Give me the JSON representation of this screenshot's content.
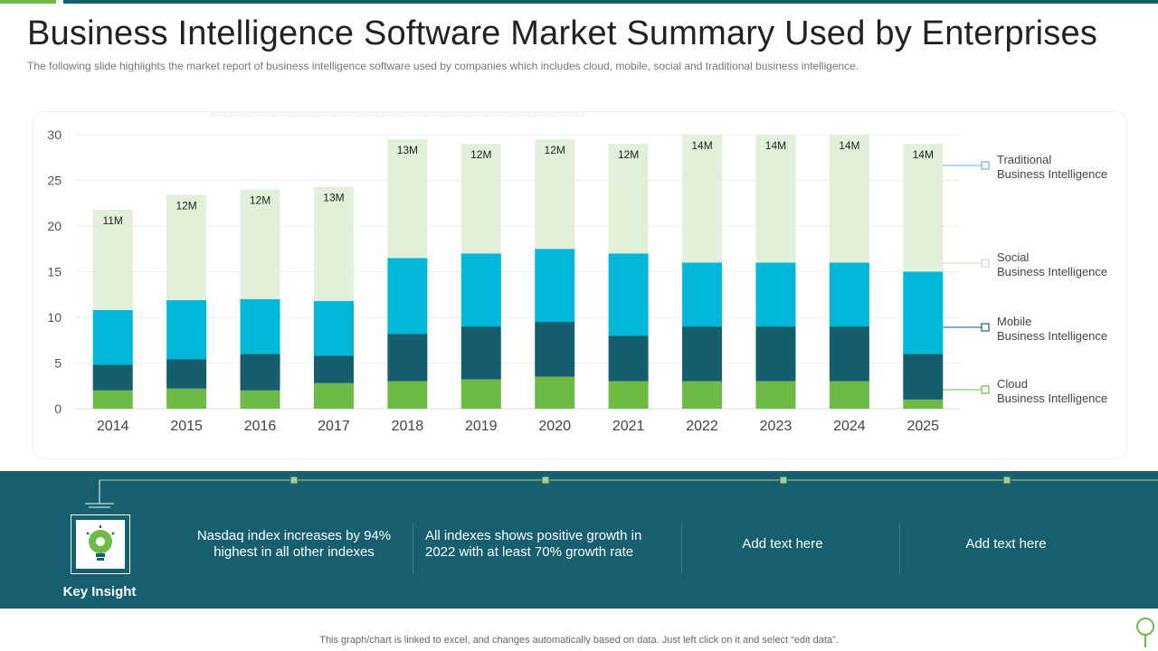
{
  "title": "Business Intelligence Software Market Summary Used by Enterprises",
  "subtitle": "The following  slide highlights the market report of business intelligence software used by companies which includes cloud, mobile, social and traditional business intelligence.",
  "chart_data": {
    "type": "bar",
    "stacked": true,
    "categories": [
      "2014",
      "2015",
      "2016",
      "2017",
      "2018",
      "2019",
      "2020",
      "2021",
      "2022",
      "2023",
      "2024",
      "2025"
    ],
    "ylim": [
      0,
      30
    ],
    "yticks": [
      0,
      5,
      10,
      15,
      20,
      25,
      30
    ],
    "series": [
      {
        "name": "Cloud Business Intelligence",
        "name_lines": [
          "Cloud",
          "Business Intelligence"
        ],
        "color": "#6dbb45",
        "values": [
          2,
          2.2,
          2,
          2.8,
          3,
          3.2,
          3.5,
          3,
          3,
          3,
          3,
          1
        ]
      },
      {
        "name": "Mobile Business Intelligence",
        "name_lines": [
          "Mobile",
          "Business Intelligence"
        ],
        "color": "#145e6e",
        "values": [
          2.8,
          3.2,
          4,
          3,
          5.2,
          5.8,
          6,
          5,
          6,
          6,
          6,
          5
        ]
      },
      {
        "name": "Social Business Intelligence",
        "name_lines": [
          "Social",
          "Business Intelligence"
        ],
        "color": "#00b7d9",
        "values": [
          6,
          6.5,
          6,
          6,
          8.3,
          8,
          8,
          9,
          7,
          7,
          7,
          9
        ]
      },
      {
        "name": "Traditional Business Intelligence",
        "name_lines": [
          "Traditional",
          "Business Intelligence"
        ],
        "color": "#e2f0d9",
        "values": [
          11,
          11.5,
          12,
          12.5,
          13,
          12,
          12,
          12,
          14,
          14,
          14,
          14
        ]
      }
    ],
    "top_labels": [
      "11M",
      "12M",
      "12M",
      "13M",
      "13M",
      "12M",
      "12M",
      "12M",
      "14M",
      "14M",
      "14M",
      "14M"
    ],
    "legend_position": "right"
  },
  "insights": {
    "label": "Key Insight",
    "items": [
      {
        "line1": "Nasdaq index increases by 94%",
        "line2": "highest in all other indexes"
      },
      {
        "line1": "All indexes shows positive growth in",
        "line2": "2022 with at least 70% growth rate"
      },
      {
        "line1": "Add text here",
        "line2": ""
      },
      {
        "line1": "Add text here",
        "line2": ""
      }
    ]
  },
  "footer": "This graph/chart is linked to excel,  and changes automatically based on data. Just left click on it and select “edit data”."
}
